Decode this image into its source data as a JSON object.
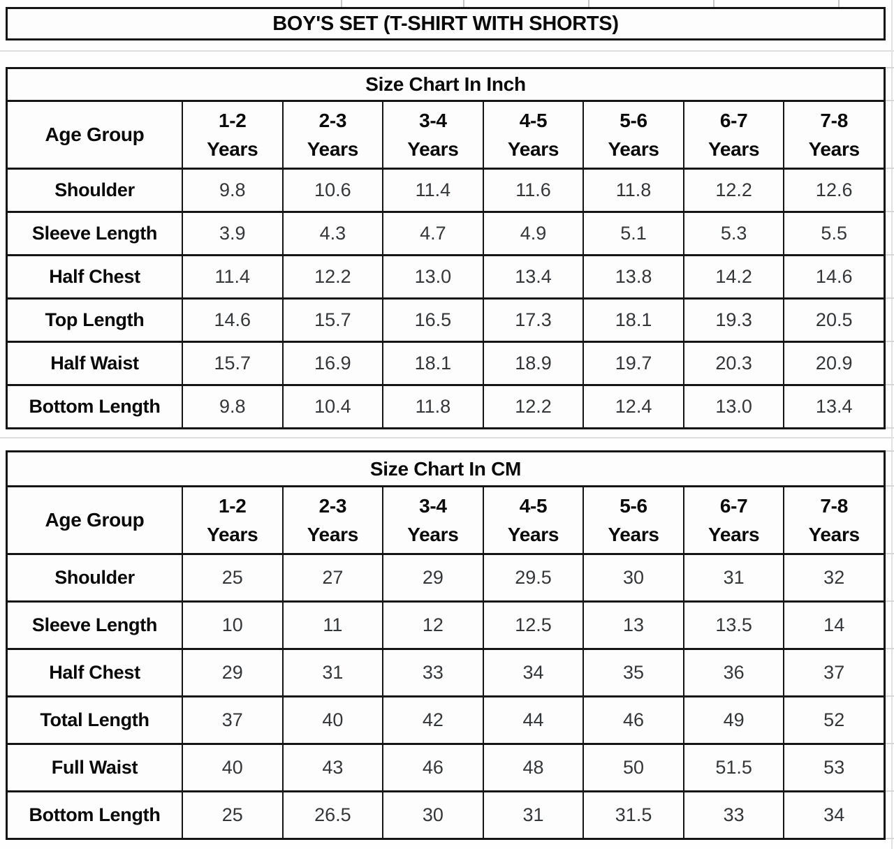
{
  "page": {
    "title": "BOY'S SET (T-SHIRT WITH SHORTS)"
  },
  "chart_data": [
    {
      "type": "table",
      "title": "Size Chart In Inch",
      "unit": "inch",
      "corner_label": "Age Group",
      "columns": [
        "1-2 Years",
        "2-3 Years",
        "3-4 Years",
        "4-5 Years",
        "5-6 Years",
        "6-7 Years",
        "7-8 Years"
      ],
      "rows": [
        {
          "label": "Shoulder",
          "values": [
            "9.8",
            "10.6",
            "11.4",
            "11.6",
            "11.8",
            "12.2",
            "12.6"
          ]
        },
        {
          "label": "Sleeve Length",
          "values": [
            "3.9",
            "4.3",
            "4.7",
            "4.9",
            "5.1",
            "5.3",
            "5.5"
          ]
        },
        {
          "label": "Half Chest",
          "values": [
            "11.4",
            "12.2",
            "13.0",
            "13.4",
            "13.8",
            "14.2",
            "14.6"
          ]
        },
        {
          "label": "Top Length",
          "values": [
            "14.6",
            "15.7",
            "16.5",
            "17.3",
            "18.1",
            "19.3",
            "20.5"
          ]
        },
        {
          "label": "Half Waist",
          "values": [
            "15.7",
            "16.9",
            "18.1",
            "18.9",
            "19.7",
            "20.3",
            "20.9"
          ]
        },
        {
          "label": "Bottom Length",
          "values": [
            "9.8",
            "10.4",
            "11.8",
            "12.2",
            "12.4",
            "13.0",
            "13.4"
          ]
        }
      ]
    },
    {
      "type": "table",
      "title": "Size Chart In CM",
      "unit": "cm",
      "corner_label": "Age Group",
      "columns": [
        "1-2 Years",
        "2-3 Years",
        "3-4 Years",
        "4-5 Years",
        "5-6 Years",
        "6-7 Years",
        "7-8 Years"
      ],
      "rows": [
        {
          "label": "Shoulder",
          "values": [
            "25",
            "27",
            "29",
            "29.5",
            "30",
            "31",
            "32"
          ]
        },
        {
          "label": "Sleeve Length",
          "values": [
            "10",
            "11",
            "12",
            "12.5",
            "13",
            "13.5",
            "14"
          ]
        },
        {
          "label": "Half Chest",
          "values": [
            "29",
            "31",
            "33",
            "34",
            "35",
            "36",
            "37"
          ]
        },
        {
          "label": "Total Length",
          "values": [
            "37",
            "40",
            "42",
            "44",
            "46",
            "49",
            "52"
          ]
        },
        {
          "label": "Full Waist",
          "values": [
            "40",
            "43",
            "46",
            "48",
            "50",
            "51.5",
            "53"
          ]
        },
        {
          "label": "Bottom Length",
          "values": [
            "25",
            "26.5",
            "30",
            "31",
            "31.5",
            "33",
            "34"
          ]
        }
      ]
    }
  ]
}
